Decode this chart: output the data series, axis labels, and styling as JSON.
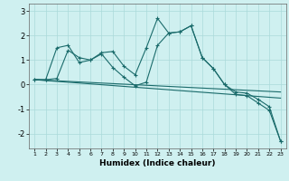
{
  "title": "",
  "xlabel": "Humidex (Indice chaleur)",
  "bg_color": "#cff0f0",
  "grid_color": "#aadada",
  "line_color": "#1a6b6b",
  "xlim": [
    0.5,
    23.5
  ],
  "ylim": [
    -2.6,
    3.3
  ],
  "xticks": [
    1,
    2,
    3,
    4,
    5,
    6,
    7,
    8,
    9,
    10,
    11,
    12,
    13,
    14,
    15,
    16,
    17,
    18,
    19,
    20,
    21,
    22,
    23
  ],
  "yticks": [
    -2,
    -1,
    0,
    1,
    2,
    3
  ],
  "lines": [
    {
      "x": [
        1,
        2,
        3,
        4,
        5,
        6,
        7,
        8,
        9,
        10,
        11,
        12,
        13,
        14,
        15,
        16,
        17,
        18,
        19,
        20,
        21,
        22,
        23
      ],
      "y": [
        0.2,
        0.2,
        1.5,
        1.6,
        0.9,
        1.0,
        1.3,
        1.35,
        0.75,
        0.4,
        1.5,
        2.7,
        2.1,
        2.15,
        2.4,
        1.1,
        0.65,
        0.0,
        -0.4,
        -0.45,
        -0.75,
        -1.05,
        -2.3
      ]
    },
    {
      "x": [
        1,
        2,
        3,
        4,
        5,
        6,
        7,
        8,
        9,
        10,
        11,
        12,
        13,
        14,
        15,
        16,
        17,
        18,
        19,
        20,
        21,
        22,
        23
      ],
      "y": [
        0.2,
        0.2,
        0.25,
        1.4,
        1.1,
        1.0,
        1.25,
        0.7,
        0.3,
        -0.05,
        0.1,
        1.6,
        2.1,
        2.15,
        2.4,
        1.1,
        0.65,
        0.0,
        -0.3,
        -0.35,
        -0.6,
        -0.9,
        -2.3
      ]
    },
    {
      "x": [
        1,
        23
      ],
      "y": [
        0.2,
        -0.55
      ]
    },
    {
      "x": [
        1,
        23
      ],
      "y": [
        0.2,
        -0.3
      ]
    }
  ]
}
